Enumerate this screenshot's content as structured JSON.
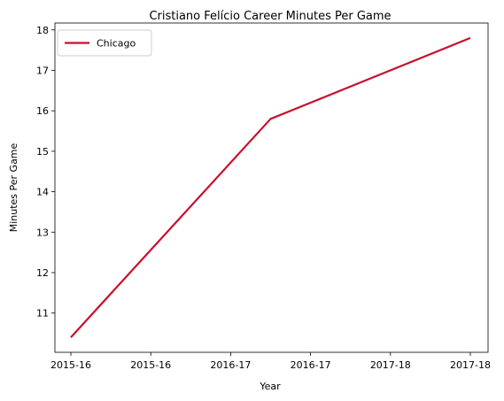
{
  "chart_data": {
    "type": "line",
    "title": "Cristiano Felício Career Minutes Per Game",
    "xlabel": "Year",
    "ylabel": "Minutes Per Game",
    "x_tick_labels": [
      "2015-16",
      "2015-16",
      "2016-17",
      "2016-17",
      "2017-18",
      "2017-18"
    ],
    "x_categories": [
      "2015-16",
      "2016-17",
      "2017-18"
    ],
    "y_ticks": [
      11,
      12,
      13,
      14,
      15,
      16,
      17,
      18
    ],
    "ylim": [
      10.03,
      18.17
    ],
    "series": [
      {
        "name": "Chicago",
        "color": "#c8102e",
        "x": [
          "2015-16",
          "2016-17",
          "2017-18"
        ],
        "values": [
          10.4,
          15.8,
          17.8
        ]
      }
    ],
    "legend": {
      "placement": "top-left"
    },
    "grid": false
  }
}
